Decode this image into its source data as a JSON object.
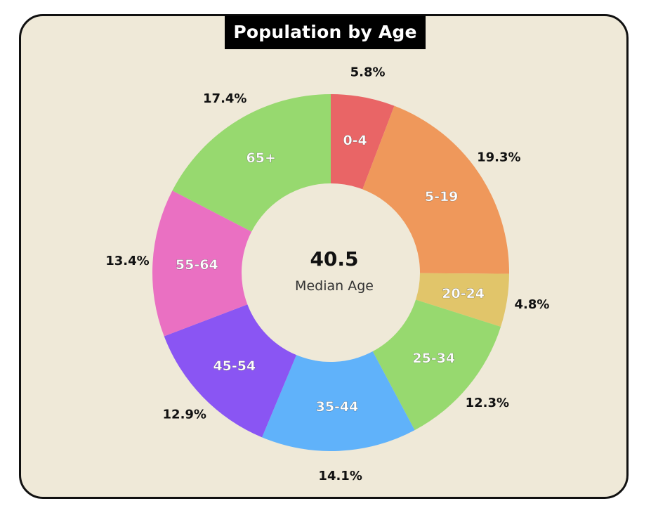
{
  "chart_data": {
    "type": "pie",
    "variant": "donut",
    "title": "Population by Age",
    "center": {
      "value": "40.5",
      "label": "Median Age"
    },
    "categories": [
      "0-4",
      "5-19",
      "20-24",
      "25-34",
      "35-44",
      "45-54",
      "55-64",
      "65+"
    ],
    "values": [
      5.8,
      19.3,
      4.8,
      12.3,
      14.1,
      12.9,
      13.4,
      17.4
    ],
    "value_labels": [
      "5.8%",
      "19.3%",
      "4.8%",
      "12.3%",
      "14.1%",
      "12.9%",
      "13.4%",
      "17.4%"
    ],
    "colors": [
      "#e96566",
      "#ef985b",
      "#e1c56a",
      "#97d96f",
      "#60b2fa",
      "#8a55f3",
      "#ea70c2",
      "#97d96f"
    ],
    "start": "top, clockwise"
  },
  "colors": {
    "background": "#efe9d8",
    "title_bg": "#000000",
    "title_text": "#ffffff"
  }
}
